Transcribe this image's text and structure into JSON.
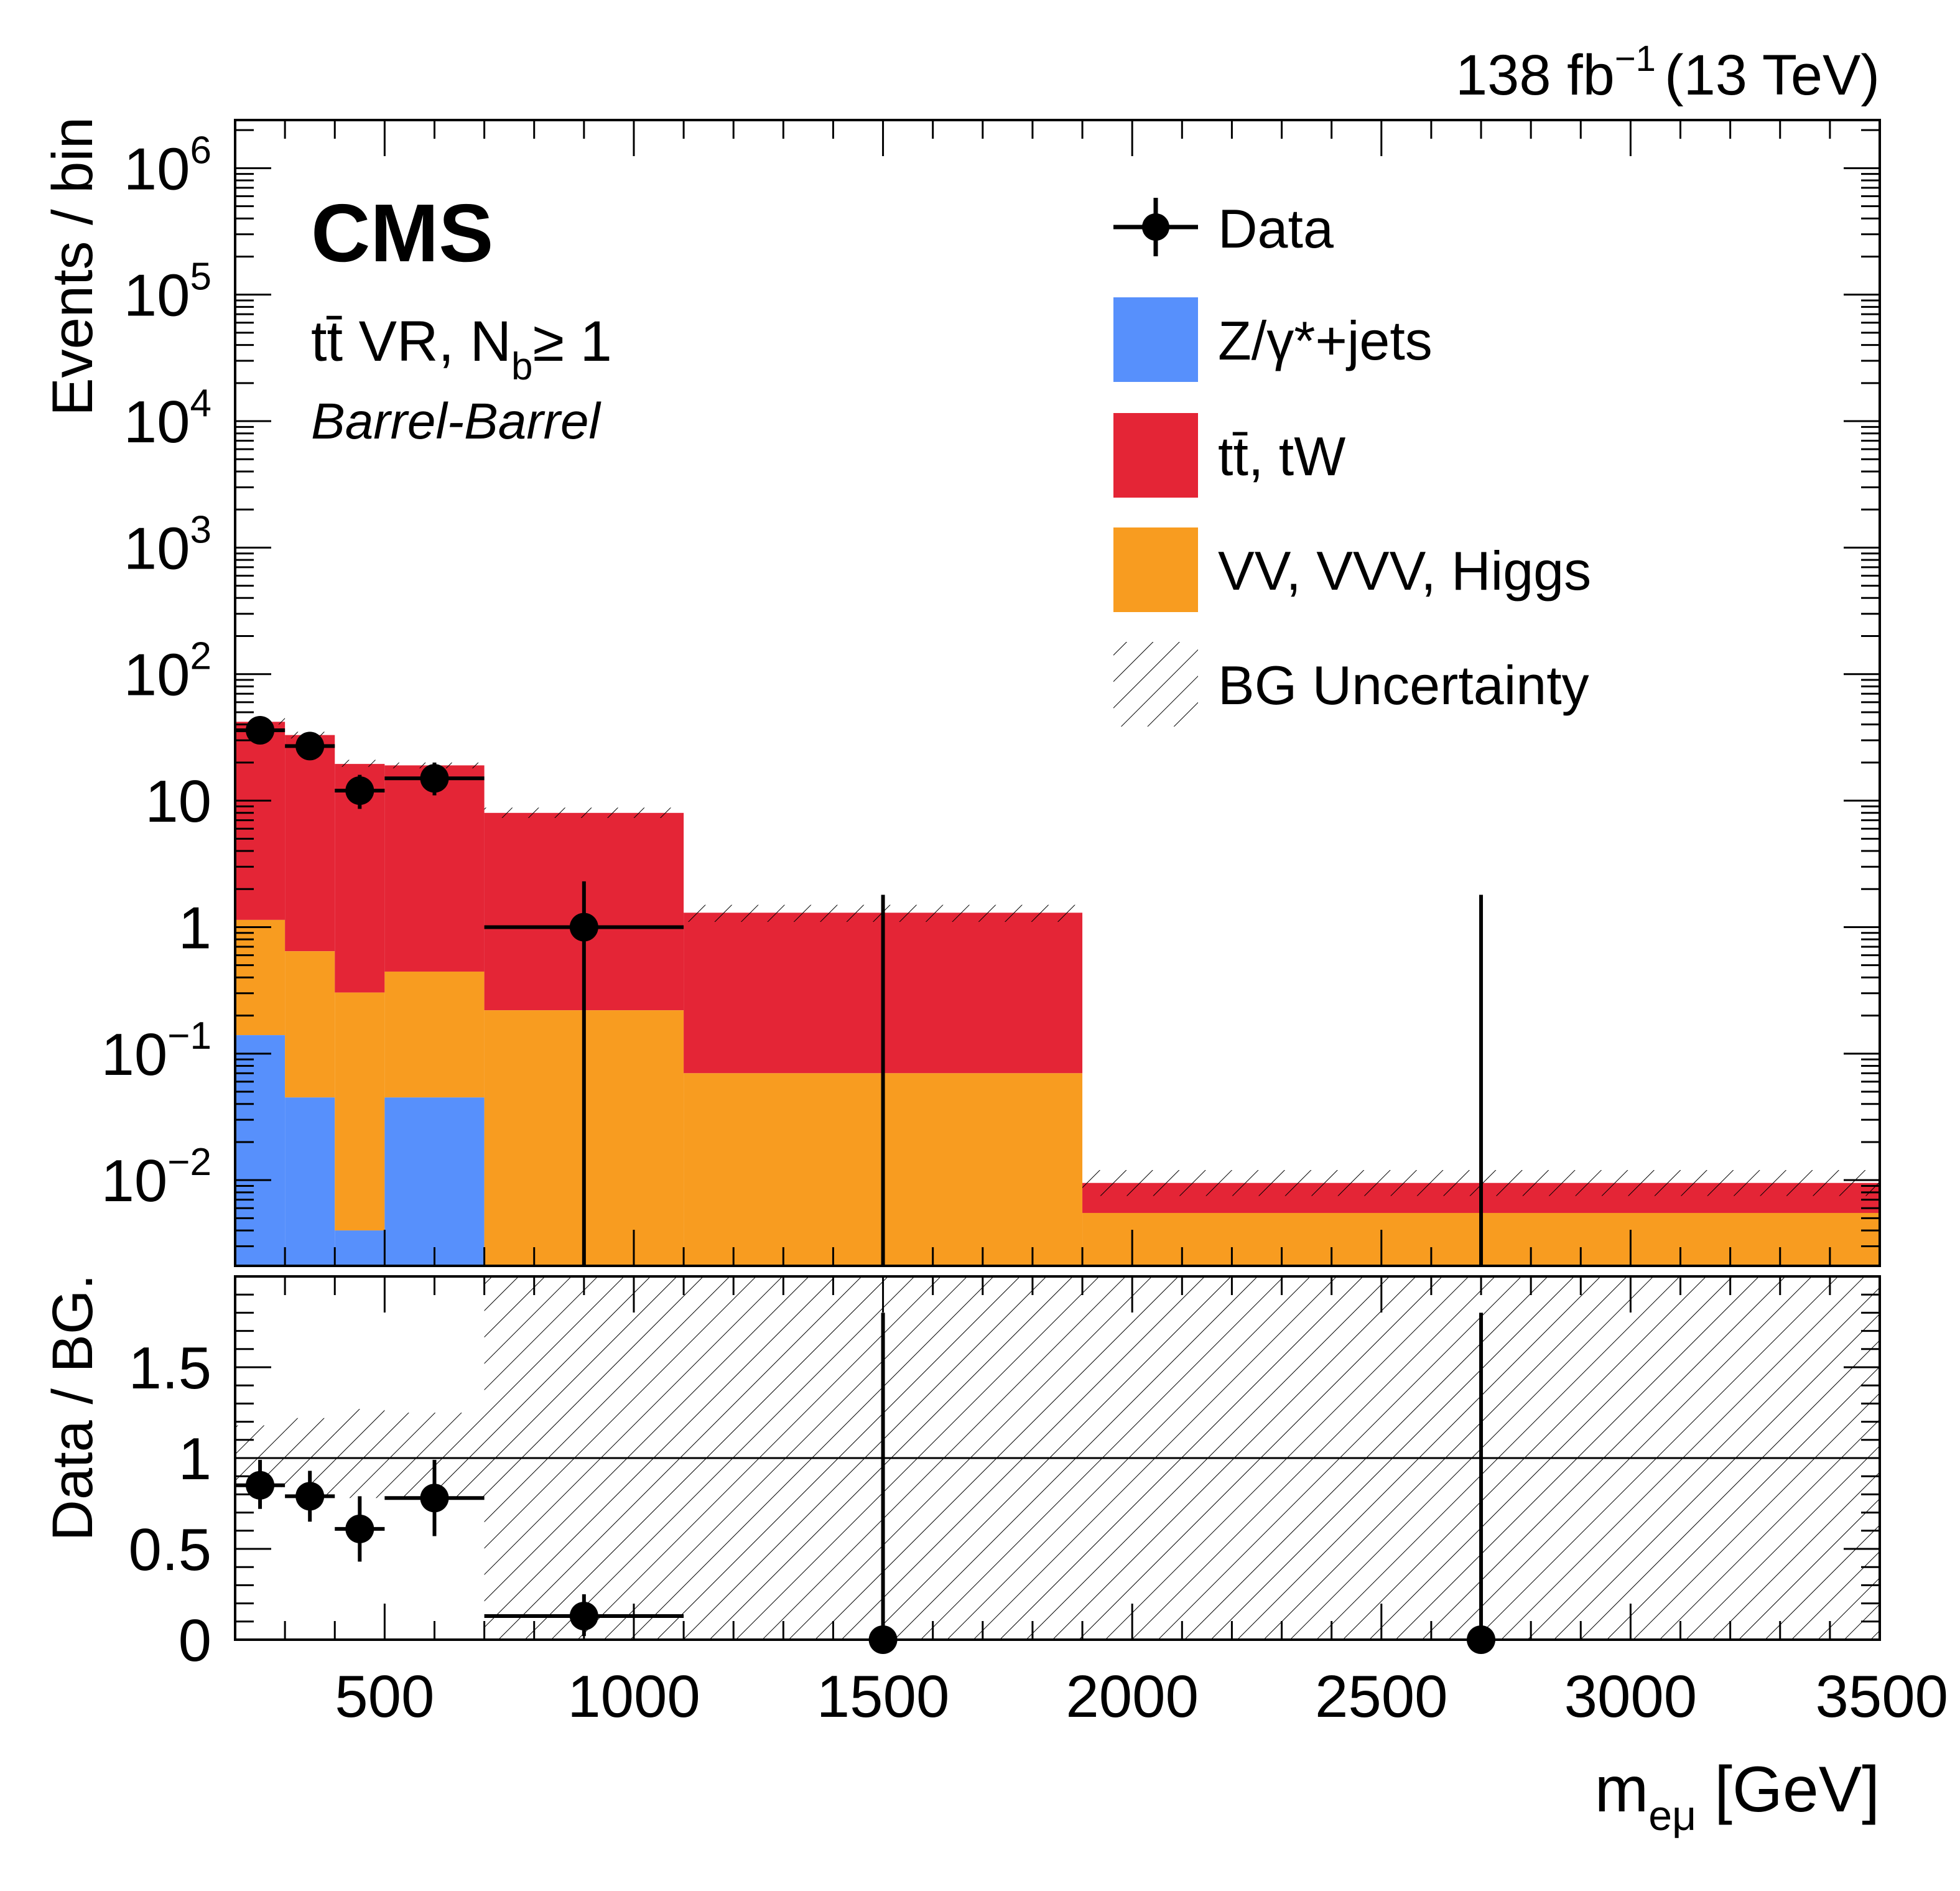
{
  "header": {
    "lumi": "138 fb",
    "lumi_exp": "−1",
    "energy": "(13 TeV)",
    "experiment": "CMS",
    "region_a": "tt̄ VR, N",
    "region_sub": "b",
    "region_b": "≥ 1",
    "category": "Barrel-Barrel"
  },
  "legend": {
    "data": "Data",
    "dy": "Z/γ*+jets",
    "ttbar": "tt̄, tW",
    "vv": "VV, VVV, Higgs",
    "unc": "BG Uncertainty"
  },
  "colors": {
    "dy": "#5790fc",
    "ttbar": "#e42536",
    "vv": "#f89c20",
    "data": "#000000"
  },
  "chart_data": [
    {
      "panel": "main",
      "type": "bar",
      "stacked": true,
      "yscale": "log",
      "ylabel": "Events / bin",
      "ylim": [
        0.0021,
        2400000
      ],
      "xlim": [
        200,
        3500
      ],
      "y_ticks": [
        0.01,
        0.1,
        1,
        10,
        100,
        1000,
        10000,
        100000,
        1000000
      ],
      "y_tick_labels": [
        {
          "base": "10",
          "exp": "−2"
        },
        {
          "base": "10",
          "exp": "−1"
        },
        {
          "base": "1",
          "exp": ""
        },
        {
          "base": "10",
          "exp": ""
        },
        {
          "base": "10",
          "exp": "2"
        },
        {
          "base": "10",
          "exp": "3"
        },
        {
          "base": "10",
          "exp": "4"
        },
        {
          "base": "10",
          "exp": "5"
        },
        {
          "base": "10",
          "exp": "6"
        }
      ],
      "bin_edges": [
        200,
        300,
        400,
        500,
        700,
        1100,
        1900,
        3500
      ],
      "series": [
        {
          "name": "Z/γ*+jets",
          "values": [
            0.14,
            0.045,
            0.004,
            0.045,
            0,
            0,
            0
          ]
        },
        {
          "name": "VV, VVV, Higgs",
          "values": [
            1.0,
            0.6,
            0.3,
            0.4,
            0.22,
            0.07,
            0.0055
          ]
        },
        {
          "name": "tt̄, tW",
          "values": [
            42,
            33,
            19.5,
            19,
            8,
            1.3,
            0.0095
          ]
        },
        {
          "name": "BG Uncertainty (stack total band)",
          "lower": [
            40,
            31,
            18.5,
            18,
            7.3,
            1.1,
            0.0075
          ],
          "upper": [
            45,
            35,
            21,
            20,
            8.8,
            1.5,
            0.012
          ]
        }
      ],
      "data_points": [
        {
          "x": 250,
          "y": 36,
          "xerr": 50,
          "ylo": 30,
          "yhi": 43
        },
        {
          "x": 350,
          "y": 27,
          "xerr": 50,
          "ylo": 22,
          "yhi": 33
        },
        {
          "x": 450,
          "y": 12,
          "xerr": 50,
          "ylo": 8.6,
          "yhi": 16
        },
        {
          "x": 600,
          "y": 15,
          "xerr": 100,
          "ylo": 11,
          "yhi": 20
        },
        {
          "x": 900,
          "y": 1,
          "xerr": 200,
          "ylo": 0.0021,
          "yhi": 2.3
        },
        {
          "x": 1500,
          "y": 0,
          "xerr": 0,
          "ylo": 0.0021,
          "yhi": 1.8
        },
        {
          "x": 2700,
          "y": 0,
          "xerr": 0,
          "ylo": 0.0021,
          "yhi": 1.8
        }
      ]
    },
    {
      "panel": "ratio",
      "type": "scatter",
      "ylabel": "Data / BG.",
      "xlabel": "m",
      "xlabel_sub": "eμ",
      "xlabel_unit": " [GeV]",
      "ylim": [
        0,
        2.0
      ],
      "xlim": [
        200,
        3500
      ],
      "x_ticks": [
        500,
        1000,
        1500,
        2000,
        2500,
        3000,
        3500
      ],
      "x_tick_labels": [
        "500",
        "1000",
        "1500",
        "2000",
        "2500",
        "3000",
        "3500"
      ],
      "y_ticks": [
        0,
        0.5,
        1,
        1.5
      ],
      "y_tick_labels": [
        "0",
        "0.5",
        "1",
        "1.5"
      ],
      "reference_line": 1,
      "uncertainty_band": [
        {
          "x0": 200,
          "x1": 300,
          "lo": 0.84,
          "hi": 1.18
        },
        {
          "x0": 300,
          "x1": 400,
          "lo": 0.8,
          "hi": 1.22
        },
        {
          "x0": 400,
          "x1": 500,
          "lo": 0.78,
          "hi": 1.27
        },
        {
          "x0": 500,
          "x1": 700,
          "lo": 0.78,
          "hi": 1.25
        },
        {
          "x0": 700,
          "x1": 3500,
          "lo": 0,
          "hi": 2.0
        }
      ],
      "points": [
        {
          "x": 250,
          "y": 0.85,
          "xerr": 50,
          "ylo": 0.72,
          "yhi": 0.99
        },
        {
          "x": 350,
          "y": 0.79,
          "xerr": 50,
          "ylo": 0.65,
          "yhi": 0.93
        },
        {
          "x": 450,
          "y": 0.61,
          "xerr": 50,
          "ylo": 0.43,
          "yhi": 0.79
        },
        {
          "x": 600,
          "y": 0.78,
          "xerr": 100,
          "ylo": 0.57,
          "yhi": 0.99
        },
        {
          "x": 900,
          "y": 0.13,
          "xerr": 200,
          "ylo": 0.02,
          "yhi": 0.25
        },
        {
          "x": 1500,
          "y": 0,
          "xerr": 0,
          "ylo": 0,
          "yhi": 1.8
        },
        {
          "x": 2700,
          "y": 0,
          "xerr": 0,
          "ylo": 0,
          "yhi": 1.8
        }
      ]
    }
  ]
}
